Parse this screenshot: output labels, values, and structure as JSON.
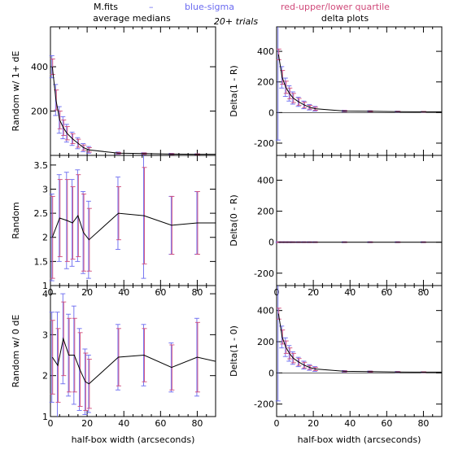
{
  "header": {
    "legend": {
      "mfits": "M.fits",
      "dash": "–",
      "blue": "blue-sigma",
      "red": "red-upper/lower quartile"
    },
    "left_title": "average medians",
    "center_note": "20+ trials",
    "right_title": "delta plots"
  },
  "colors": {
    "blue": "#6a6af0",
    "red": "#d04a7a",
    "line": "#000000"
  },
  "chart_data": [
    {
      "id": "random_1_dE",
      "type": "line",
      "column": "left",
      "row": 0,
      "ylabel": "Random w/ 1+ dE",
      "xlim": [
        0,
        90
      ],
      "ylim": [
        0,
        580
      ],
      "xticks": [
        0,
        20,
        40,
        60,
        80
      ],
      "yticks": [
        200,
        400
      ],
      "show_xlabels": false,
      "x": [
        1,
        3,
        5,
        7,
        9,
        12,
        15,
        18,
        21,
        37,
        51,
        66,
        80,
        90
      ],
      "y": [
        400,
        250,
        160,
        125,
        100,
        75,
        55,
        35,
        25,
        10,
        8,
        6,
        5,
        5
      ],
      "blue_err": [
        50,
        70,
        60,
        50,
        40,
        30,
        25,
        18,
        15,
        5,
        4,
        3,
        2,
        null
      ],
      "red_err": [
        35,
        45,
        40,
        35,
        30,
        22,
        18,
        12,
        10,
        3,
        3,
        2,
        2,
        null
      ]
    },
    {
      "id": "random",
      "type": "line",
      "column": "left",
      "row": 1,
      "ylabel": "Random",
      "xlim": [
        0,
        90
      ],
      "ylim": [
        1,
        3.7
      ],
      "xticks": [
        0,
        20,
        40,
        60,
        80
      ],
      "yticks": [
        1,
        1.5,
        2,
        2.5,
        3,
        3.5
      ],
      "ytick_labels": [
        "1",
        "1.5",
        "2",
        "2.5",
        "3",
        "3.5"
      ],
      "show_xlabels": true,
      "x": [
        1,
        5,
        9,
        12,
        15,
        18,
        21,
        37,
        51,
        66,
        80,
        90
      ],
      "y": [
        2.0,
        2.4,
        2.35,
        2.3,
        2.45,
        2.1,
        1.95,
        2.5,
        2.45,
        2.25,
        2.3,
        2.3
      ],
      "blue_err": [
        0.9,
        0.9,
        1.0,
        0.9,
        0.95,
        0.85,
        0.8,
        0.75,
        1.3,
        0.6,
        0.65,
        null
      ],
      "red_err": [
        0.85,
        0.8,
        0.85,
        0.75,
        0.85,
        0.8,
        0.65,
        0.55,
        1.0,
        0.6,
        0.65,
        null
      ]
    },
    {
      "id": "random_0_dE",
      "type": "line",
      "column": "left",
      "row": 2,
      "ylabel": "Random w/ 0 dE",
      "xlim": [
        0,
        90
      ],
      "ylim": [
        1,
        4.2
      ],
      "xticks": [
        0,
        20,
        40,
        60,
        80
      ],
      "yticks": [
        1,
        2,
        3,
        4
      ],
      "ytick_labels": [
        "1",
        "2",
        "3",
        "4"
      ],
      "show_xlabels": true,
      "x": [
        1,
        4,
        7,
        10,
        13,
        16,
        19,
        21,
        37,
        51,
        66,
        80,
        90
      ],
      "y": [
        2.45,
        2.25,
        2.9,
        2.5,
        2.5,
        2.15,
        1.85,
        1.8,
        2.45,
        2.5,
        2.2,
        2.45,
        2.35
      ],
      "blue_err": [
        1.1,
        1.3,
        1.1,
        1.0,
        1.2,
        1.0,
        0.8,
        0.7,
        0.8,
        0.75,
        0.6,
        0.95,
        null
      ],
      "red_err": [
        0.9,
        0.9,
        0.9,
        0.9,
        0.9,
        0.9,
        0.7,
        0.6,
        0.7,
        0.65,
        0.55,
        0.85,
        null
      ],
      "xlabel": "half-box width (arcseconds)"
    },
    {
      "id": "delta_1_R",
      "type": "line",
      "column": "right",
      "row": 0,
      "ylabel": "Delta(1 - R)",
      "xlim": [
        0,
        90
      ],
      "ylim": [
        -280,
        560
      ],
      "xticks": [
        0,
        20,
        40,
        60,
        80
      ],
      "yticks": [
        -200,
        0,
        200,
        400
      ],
      "show_xlabels": false,
      "x": [
        1,
        3,
        5,
        7,
        9,
        12,
        15,
        18,
        21,
        37,
        51,
        66,
        80,
        90
      ],
      "y": [
        380,
        230,
        165,
        125,
        95,
        70,
        50,
        35,
        25,
        10,
        8,
        6,
        5,
        5
      ],
      "blue_err": [
        560,
        70,
        60,
        50,
        40,
        30,
        25,
        18,
        15,
        5,
        4,
        3,
        2,
        null
      ],
      "red_err": [
        35,
        45,
        40,
        35,
        30,
        22,
        18,
        12,
        10,
        3,
        3,
        2,
        2,
        null
      ]
    },
    {
      "id": "delta_0_R",
      "type": "line",
      "column": "right",
      "row": 1,
      "ylabel": "Delta(0 - R)",
      "xlim": [
        0,
        90
      ],
      "ylim": [
        -280,
        560
      ],
      "xticks": [
        0,
        20,
        40,
        60,
        80
      ],
      "yticks": [
        -200,
        0,
        200,
        400
      ],
      "show_xlabels": true,
      "x": [
        1,
        3,
        5,
        7,
        9,
        12,
        15,
        18,
        21,
        37,
        51,
        66,
        80,
        90
      ],
      "y": [
        0,
        0,
        0,
        0,
        0,
        0,
        0,
        0,
        0,
        0,
        0,
        0,
        0,
        0
      ],
      "blue_err": [
        3,
        3,
        3,
        3,
        3,
        3,
        3,
        3,
        3,
        3,
        3,
        3,
        3,
        null
      ],
      "red_err": [
        2,
        2,
        2,
        2,
        2,
        2,
        2,
        2,
        2,
        2,
        2,
        2,
        2,
        null
      ]
    },
    {
      "id": "delta_1_0",
      "type": "line",
      "column": "right",
      "row": 2,
      "ylabel": "Delta(1 - 0)",
      "xlim": [
        0,
        90
      ],
      "ylim": [
        -280,
        560
      ],
      "xticks": [
        0,
        20,
        40,
        60,
        80
      ],
      "yticks": [
        -200,
        0,
        200,
        400
      ],
      "show_xlabels": true,
      "x": [
        1,
        3,
        5,
        7,
        9,
        12,
        15,
        18,
        21,
        37,
        51,
        66,
        80,
        90
      ],
      "y": [
        380,
        230,
        165,
        125,
        95,
        70,
        50,
        35,
        25,
        10,
        8,
        6,
        5,
        5
      ],
      "blue_err": [
        560,
        70,
        60,
        50,
        40,
        30,
        25,
        18,
        15,
        5,
        4,
        3,
        2,
        null
      ],
      "red_err": [
        35,
        45,
        40,
        35,
        30,
        22,
        18,
        12,
        10,
        3,
        3,
        2,
        2,
        null
      ],
      "xlabel": "half-box width (arcseconds)"
    }
  ]
}
